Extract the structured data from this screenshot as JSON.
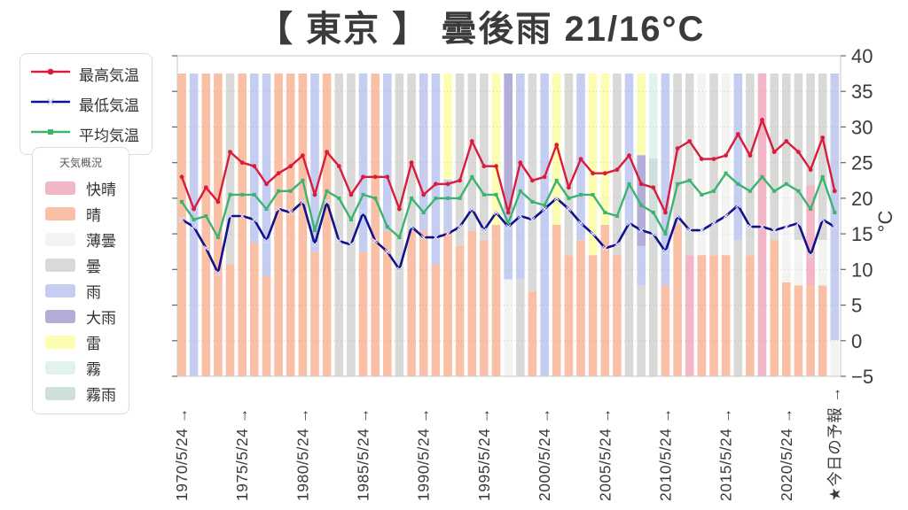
{
  "title": "【 東京 】 曇後雨  21/16°C",
  "series_legend": [
    {
      "label": "最高気温",
      "color": "#d91c3c",
      "marker": "circle"
    },
    {
      "label": "最低気温",
      "color": "#12128c",
      "marker": "x"
    },
    {
      "label": "平均気温",
      "color": "#3eb370",
      "marker": "square"
    }
  ],
  "weather_legend": {
    "title": "天気概況",
    "items": [
      {
        "label": "快晴",
        "color": "#f3b6c6"
      },
      {
        "label": "晴",
        "color": "#f9c0a6"
      },
      {
        "label": "薄曇",
        "color": "#f3f3f1"
      },
      {
        "label": "曇",
        "color": "#d9d9d7"
      },
      {
        "label": "雨",
        "color": "#c5cef0"
      },
      {
        "label": "大雨",
        "color": "#b2aed8"
      },
      {
        "label": "雷",
        "color": "#fdfdb2"
      },
      {
        "label": "霧",
        "color": "#e2f3ee"
      },
      {
        "label": "霧雨",
        "color": "#cfdfdb"
      }
    ]
  },
  "axes": {
    "y_unit": "°C",
    "y_ticks": [
      "40",
      "35",
      "30",
      "25",
      "20",
      "15",
      "10",
      "5",
      "0",
      "−5"
    ],
    "y_tick_values": [
      40,
      35,
      30,
      25,
      20,
      15,
      10,
      5,
      0,
      -5
    ],
    "x_ticks": [
      {
        "i": 0,
        "label": "1970/5/24 →"
      },
      {
        "i": 5,
        "label": "1975/5/24 →"
      },
      {
        "i": 10,
        "label": "1980/5/24 →"
      },
      {
        "i": 15,
        "label": "1985/5/24 →"
      },
      {
        "i": 20,
        "label": "1990/5/24 →"
      },
      {
        "i": 25,
        "label": "1995/5/24 →"
      },
      {
        "i": 30,
        "label": "2000/5/24 →"
      },
      {
        "i": 35,
        "label": "2005/5/24 →"
      },
      {
        "i": 40,
        "label": "2010/5/24 →"
      },
      {
        "i": 45,
        "label": "2015/5/24 →"
      },
      {
        "i": 50,
        "label": "2020/5/24 →"
      },
      {
        "i": 54,
        "label": "★今日の予報 →"
      }
    ]
  },
  "chart_data": {
    "type": "line",
    "title": "【 東京 】 曇後雨 21/16°C",
    "ylabel": "°C",
    "ylim": [
      -5,
      40
    ],
    "grid_values": [
      35,
      30,
      25,
      20,
      15,
      10,
      5,
      0
    ],
    "legend_position": "upper-left-outside",
    "years": [
      1970,
      1971,
      1972,
      1973,
      1974,
      1975,
      1976,
      1977,
      1978,
      1979,
      1980,
      1981,
      1982,
      1983,
      1984,
      1985,
      1986,
      1987,
      1988,
      1989,
      1990,
      1991,
      1992,
      1993,
      1994,
      1995,
      1996,
      1997,
      1998,
      1999,
      2000,
      2001,
      2002,
      2003,
      2004,
      2005,
      2006,
      2007,
      2008,
      2009,
      2010,
      2011,
      2012,
      2013,
      2014,
      2015,
      2016,
      2017,
      2018,
      2019,
      2020,
      2021,
      2022,
      2023,
      2024
    ],
    "series": [
      {
        "name": "最高気温",
        "color": "#d91c3c",
        "marker": "circle",
        "values": [
          23,
          18.5,
          21.5,
          19.5,
          26.5,
          25,
          24.5,
          22,
          23.5,
          24.5,
          26,
          20.5,
          26.5,
          24.5,
          20.5,
          23,
          23,
          23,
          18.5,
          25,
          20.5,
          22,
          22,
          22.5,
          28,
          24.5,
          24.5,
          18,
          25,
          22.5,
          23,
          27.5,
          21.5,
          25.5,
          23.5,
          23.5,
          24,
          26,
          22,
          21.5,
          18,
          27,
          28,
          25.5,
          25.5,
          26,
          29,
          26,
          31,
          26.5,
          28,
          26.5,
          24,
          28.5,
          21
        ]
      },
      {
        "name": "最低気温",
        "color": "#12128c",
        "marker": "x",
        "values": [
          17,
          16,
          13,
          9.5,
          17.5,
          17.5,
          17,
          14,
          18.5,
          18,
          19.5,
          13.5,
          19.5,
          14,
          13.5,
          18,
          14,
          12.5,
          10,
          16,
          14.5,
          14.5,
          15,
          16,
          18.5,
          15.5,
          18,
          16,
          17.5,
          17,
          18.5,
          20,
          18.5,
          16.5,
          15,
          13,
          13.5,
          16.5,
          15.5,
          15,
          12.5,
          17.5,
          15.5,
          15.5,
          16.5,
          17.5,
          19,
          16,
          16,
          15.5,
          16,
          16.5,
          12,
          17,
          16
        ]
      },
      {
        "name": "平均気温",
        "color": "#3eb370",
        "marker": "square",
        "values": [
          19.5,
          17,
          17.5,
          14.5,
          20.5,
          20.5,
          20.5,
          18.5,
          21,
          21,
          22.5,
          15.5,
          21,
          20,
          17,
          20.5,
          20,
          16,
          14.5,
          20,
          18,
          20,
          20,
          20,
          23,
          20.5,
          20.5,
          16.5,
          21,
          19.5,
          19,
          22.5,
          20,
          20.5,
          20.5,
          18,
          17.5,
          22,
          19,
          18,
          15,
          22,
          22.5,
          20.5,
          21,
          23.5,
          22,
          21,
          23,
          21,
          22,
          21,
          18.5,
          23,
          18
        ]
      }
    ],
    "weather_by_year": [
      [
        [
          "晴",
          1
        ]
      ],
      [
        [
          "雨",
          1
        ]
      ],
      [
        [
          "晴",
          1
        ]
      ],
      [
        [
          "晴",
          1
        ]
      ],
      [
        [
          "曇",
          0.63
        ],
        [
          "晴",
          0.37
        ]
      ],
      [
        [
          "晴",
          1
        ]
      ],
      [
        [
          "雨",
          0.56
        ],
        [
          "晴",
          0.44
        ]
      ],
      [
        [
          "雨",
          0.67
        ],
        [
          "晴",
          0.33
        ]
      ],
      [
        [
          "晴",
          1
        ]
      ],
      [
        [
          "晴",
          1
        ]
      ],
      [
        [
          "晴",
          1
        ]
      ],
      [
        [
          "雨",
          0.59
        ],
        [
          "晴",
          0.41
        ]
      ],
      [
        [
          "晴",
          1
        ]
      ],
      [
        [
          "曇",
          1
        ]
      ],
      [
        [
          "曇",
          1
        ]
      ],
      [
        [
          "雨",
          0.59
        ],
        [
          "晴",
          0.41
        ]
      ],
      [
        [
          "晴",
          1
        ]
      ],
      [
        [
          "雨",
          0.52
        ],
        [
          "晴",
          0.48
        ]
      ],
      [
        [
          "曇",
          1
        ]
      ],
      [
        [
          "曇",
          0.52
        ],
        [
          "晴",
          0.48
        ]
      ],
      [
        [
          "雨",
          0.52
        ],
        [
          "晴",
          0.48
        ]
      ],
      [
        [
          "雨",
          0.63
        ],
        [
          "晴",
          0.37
        ]
      ],
      [
        [
          "雷",
          0.35
        ],
        [
          "雨",
          0.17
        ],
        [
          "晴",
          0.48
        ]
      ],
      [
        [
          "曇",
          0.57
        ],
        [
          "晴",
          0.43
        ]
      ],
      [
        [
          "曇",
          0.52
        ],
        [
          "晴",
          0.48
        ]
      ],
      [
        [
          "曇",
          0.55
        ],
        [
          "晴",
          0.45
        ]
      ],
      [
        [
          "雷",
          0.5
        ],
        [
          "晴",
          0.5
        ]
      ],
      [
        [
          "大雨",
          0.45
        ],
        [
          "雨",
          0.23
        ],
        [
          "薄曇",
          0.32
        ]
      ],
      [
        [
          "雨",
          0.68
        ],
        [
          "曇",
          0.32
        ]
      ],
      [
        [
          "曇",
          0.72
        ],
        [
          "晴",
          0.28
        ]
      ],
      [
        [
          "雨",
          1
        ]
      ],
      [
        [
          "雷",
          0.5
        ],
        [
          "晴",
          0.5
        ]
      ],
      [
        [
          "曇",
          0.6
        ],
        [
          "晴",
          0.4
        ]
      ],
      [
        [
          "雨",
          0.55
        ],
        [
          "晴",
          0.45
        ]
      ],
      [
        [
          "雷",
          0.6
        ],
        [
          "晴",
          0.4
        ]
      ],
      [
        [
          "雷",
          0.5
        ],
        [
          "晴",
          0.5
        ]
      ],
      [
        [
          "曇",
          0.6
        ],
        [
          "晴",
          0.4
        ]
      ],
      [
        [
          "雨",
          0.5
        ],
        [
          "曇",
          0.5
        ]
      ],
      [
        [
          "雷",
          0.27
        ],
        [
          "大雨",
          0.3
        ],
        [
          "雨",
          0.13
        ],
        [
          "曇",
          0.3
        ]
      ],
      [
        [
          "霧",
          0.28
        ],
        [
          "霧雨",
          0.24
        ],
        [
          "曇",
          0.48
        ]
      ],
      [
        [
          "雨",
          0.7
        ],
        [
          "晴",
          0.3
        ]
      ],
      [
        [
          "曇",
          0.5
        ],
        [
          "晴",
          0.5
        ]
      ],
      [
        [
          "曇",
          0.6
        ],
        [
          "快晴",
          0.4
        ]
      ],
      [
        [
          "薄曇",
          0.6
        ],
        [
          "晴",
          0.4
        ]
      ],
      [
        [
          "曇",
          0.6
        ],
        [
          "晴",
          0.4
        ]
      ],
      [
        [
          "薄曇",
          0.6
        ],
        [
          "晴",
          0.4
        ]
      ],
      [
        [
          "雨",
          0.55
        ],
        [
          "曇",
          0.45
        ]
      ],
      [
        [
          "曇",
          0.6
        ],
        [
          "晴",
          0.4
        ]
      ],
      [
        [
          "快晴",
          1
        ]
      ],
      [
        [
          "曇",
          0.55
        ],
        [
          "晴",
          0.45
        ]
      ],
      [
        [
          "曇",
          0.37
        ],
        [
          "薄曇",
          0.32
        ],
        [
          "晴",
          0.31
        ]
      ],
      [
        [
          "曇",
          0.55
        ],
        [
          "薄曇",
          0.15
        ],
        [
          "晴",
          0.3
        ]
      ],
      [
        [
          "曇",
          0.37
        ],
        [
          "快晴",
          0.33
        ],
        [
          "晴",
          0.3
        ]
      ],
      [
        [
          "曇",
          0.55
        ],
        [
          "薄曇",
          0.15
        ],
        [
          "晴",
          0.3
        ]
      ],
      [
        [
          "雨",
          0.88
        ],
        [
          "薄曇",
          0.12
        ]
      ]
    ]
  }
}
